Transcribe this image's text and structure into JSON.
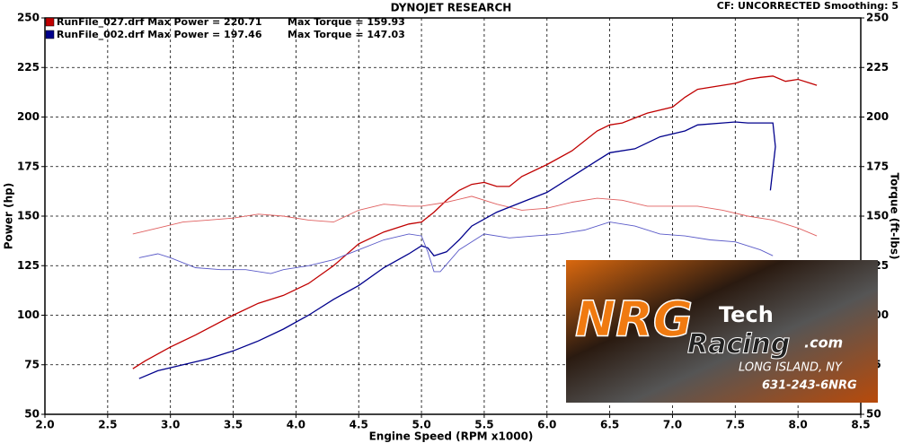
{
  "chart_data": {
    "type": "line",
    "title": "DYNOJET RESEARCH",
    "subtitle": "CF: UNCORRECTED   Smoothing: 5",
    "xlabel": "Engine Speed (RPM x1000)",
    "ylabel": "Power (hp)",
    "y2label": "Torque (ft-lbs)",
    "xlim": [
      2,
      8.5
    ],
    "xticks": [
      {
        "value": 2,
        "label": "2.0"
      },
      {
        "value": 2.5,
        "label": "2.5"
      },
      {
        "value": 3,
        "label": "3.0"
      },
      {
        "value": 3.5,
        "label": "3.5"
      },
      {
        "value": 4,
        "label": "4.0"
      },
      {
        "value": 4.5,
        "label": "4.5"
      },
      {
        "value": 5,
        "label": "5.0"
      },
      {
        "value": 5.5,
        "label": "5.5"
      },
      {
        "value": 6,
        "label": "6.0"
      },
      {
        "value": 6.5,
        "label": "6.5"
      },
      {
        "value": 7,
        "label": "7.0"
      },
      {
        "value": 7.5,
        "label": "7.5"
      },
      {
        "value": 8,
        "label": "8.0"
      },
      {
        "value": 8.5,
        "label": "8.5"
      }
    ],
    "ylim": [
      50,
      250
    ],
    "yticks": [
      50,
      75,
      100,
      125,
      150,
      175,
      200,
      225,
      250
    ],
    "y2lim": [
      50,
      250
    ],
    "y2ticks": [
      50,
      75,
      100,
      125,
      150,
      175,
      200,
      225,
      250
    ],
    "grid": true,
    "series": [
      {
        "name": "RunFile_027.drf Max Power = 220.71",
        "color": "#c00000",
        "x": [
          2.7,
          2.8,
          3.0,
          3.2,
          3.5,
          3.7,
          3.9,
          4.1,
          4.3,
          4.5,
          4.7,
          4.9,
          5.0,
          5.1,
          5.2,
          5.3,
          5.4,
          5.5,
          5.6,
          5.7,
          5.8,
          6.0,
          6.2,
          6.4,
          6.5,
          6.6,
          6.8,
          7.0,
          7.1,
          7.2,
          7.4,
          7.5,
          7.6,
          7.7,
          7.8,
          7.9,
          8.0,
          8.1,
          8.15
        ],
        "values": [
          73,
          77,
          84,
          90,
          100,
          106,
          110,
          116,
          125,
          136,
          142,
          146,
          147,
          152,
          158,
          163,
          166,
          167,
          165,
          165,
          170,
          176,
          183,
          193,
          196,
          197,
          202,
          205,
          210,
          214,
          216,
          217,
          219,
          220,
          220.7,
          218,
          219,
          217,
          216
        ]
      },
      {
        "name": "Max Torque = 159.93",
        "color": "#e06060",
        "axis": "y2",
        "x": [
          2.7,
          2.9,
          3.1,
          3.3,
          3.5,
          3.7,
          3.9,
          4.1,
          4.3,
          4.5,
          4.7,
          4.9,
          5.0,
          5.2,
          5.4,
          5.6,
          5.8,
          6.0,
          6.2,
          6.4,
          6.6,
          6.8,
          7.0,
          7.2,
          7.4,
          7.6,
          7.8,
          8.0,
          8.15
        ],
        "values": [
          141,
          144,
          147,
          148,
          149,
          151,
          150,
          148,
          147,
          153,
          156,
          155,
          155,
          157,
          160,
          156,
          153,
          154,
          157,
          159,
          158,
          155,
          155,
          155,
          153,
          150,
          148,
          144,
          140
        ]
      },
      {
        "name": "RunFile_002.drf Max Power = 197.46",
        "color": "#00008c",
        "x": [
          2.75,
          2.9,
          3.1,
          3.3,
          3.5,
          3.7,
          3.9,
          4.1,
          4.3,
          4.5,
          4.7,
          4.9,
          5.0,
          5.05,
          5.1,
          5.2,
          5.3,
          5.4,
          5.6,
          5.8,
          6.0,
          6.2,
          6.4,
          6.5,
          6.7,
          6.9,
          7.1,
          7.2,
          7.4,
          7.5,
          7.6,
          7.7,
          7.8,
          7.82,
          7.78
        ],
        "values": [
          68,
          72,
          75,
          78,
          82,
          87,
          93,
          100,
          108,
          115,
          124,
          131,
          135,
          134,
          130,
          132,
          138,
          145,
          152,
          157,
          162,
          170,
          178,
          182,
          184,
          190,
          193,
          196,
          197,
          197.5,
          197,
          197,
          197,
          185,
          163
        ]
      },
      {
        "name": "Max Torque = 147.03",
        "color": "#5a5ac8",
        "axis": "y2",
        "x": [
          2.75,
          2.9,
          3.0,
          3.2,
          3.4,
          3.6,
          3.8,
          3.9,
          4.1,
          4.3,
          4.5,
          4.7,
          4.9,
          5.0,
          5.05,
          5.1,
          5.15,
          5.3,
          5.5,
          5.7,
          5.9,
          6.1,
          6.3,
          6.5,
          6.7,
          6.9,
          7.1,
          7.3,
          7.5,
          7.7,
          7.8
        ],
        "values": [
          129,
          131,
          129,
          124,
          123,
          123,
          121,
          123,
          125,
          128,
          133,
          138,
          141,
          140,
          132,
          122,
          122,
          133,
          141,
          139,
          140,
          141,
          143,
          147,
          145,
          141,
          140,
          138,
          137,
          133,
          130
        ]
      }
    ]
  },
  "logo": {
    "brand": "NRG",
    "tech": "Tech",
    "racing": "Racing",
    "domain": ".com",
    "location": "LONG ISLAND, NY",
    "phone": "631-243-6NRG"
  }
}
